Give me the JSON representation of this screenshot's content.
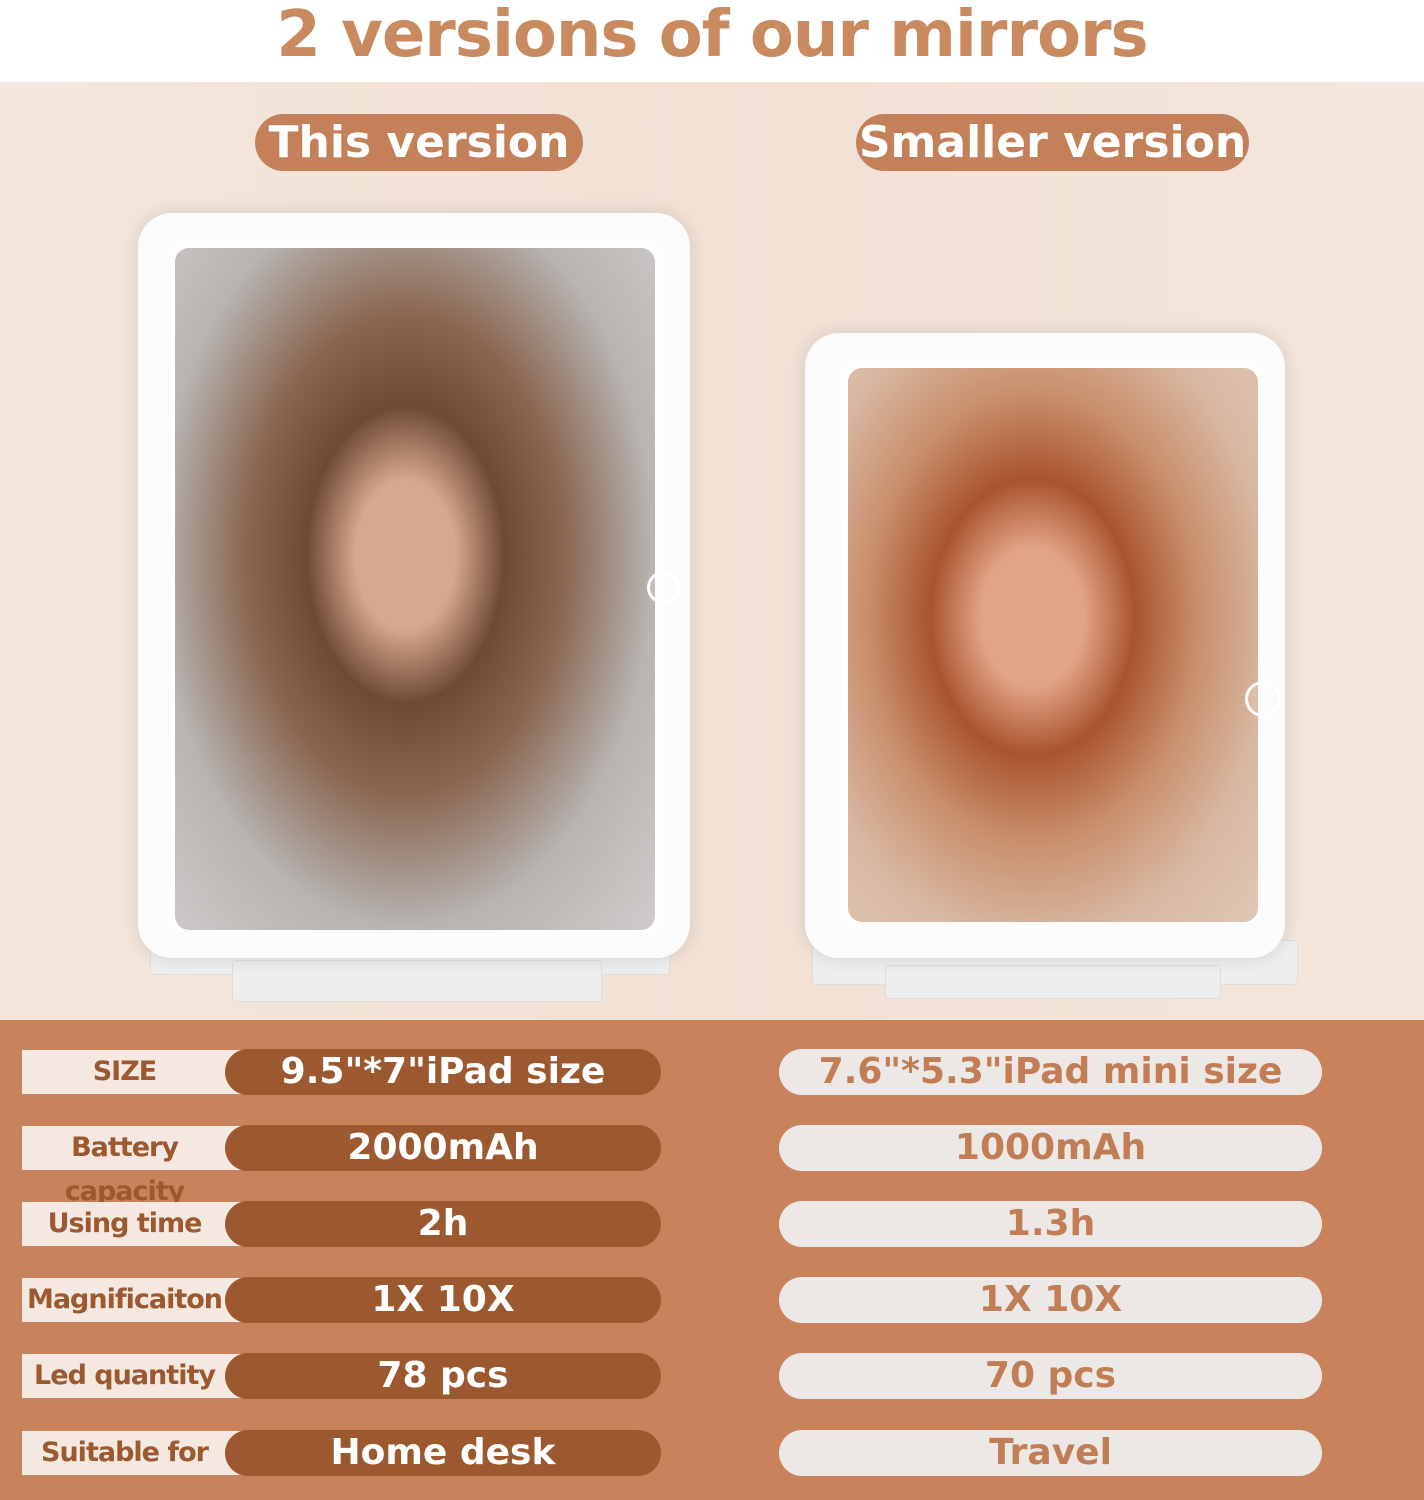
{
  "title": "2 versions of our mirrors",
  "versions": [
    {
      "label": "This version"
    },
    {
      "label": "Smaller version"
    }
  ],
  "colors": {
    "accent": "#c48058",
    "dark_pill": "#9c582f",
    "table_bg": "#c8835c",
    "label_bg": "#f5e8e0",
    "light_pill": "#ebe8e6"
  },
  "specs": [
    {
      "label": "SIZE",
      "this": "9.5\"*7\"iPad size",
      "smaller": "7.6\"*5.3\"iPad mini size"
    },
    {
      "label": "Battery capacity",
      "this": "2000mAh",
      "smaller": "1000mAh"
    },
    {
      "label": "Using time",
      "this": "2h",
      "smaller": "1.3h"
    },
    {
      "label": "Magnificaiton",
      "this": "1X 10X",
      "smaller": "1X 10X"
    },
    {
      "label": "Led quantity",
      "this": "78 pcs",
      "smaller": "70 pcs"
    },
    {
      "label": "Suitable for",
      "this": "Home desk",
      "smaller": "Travel"
    }
  ]
}
